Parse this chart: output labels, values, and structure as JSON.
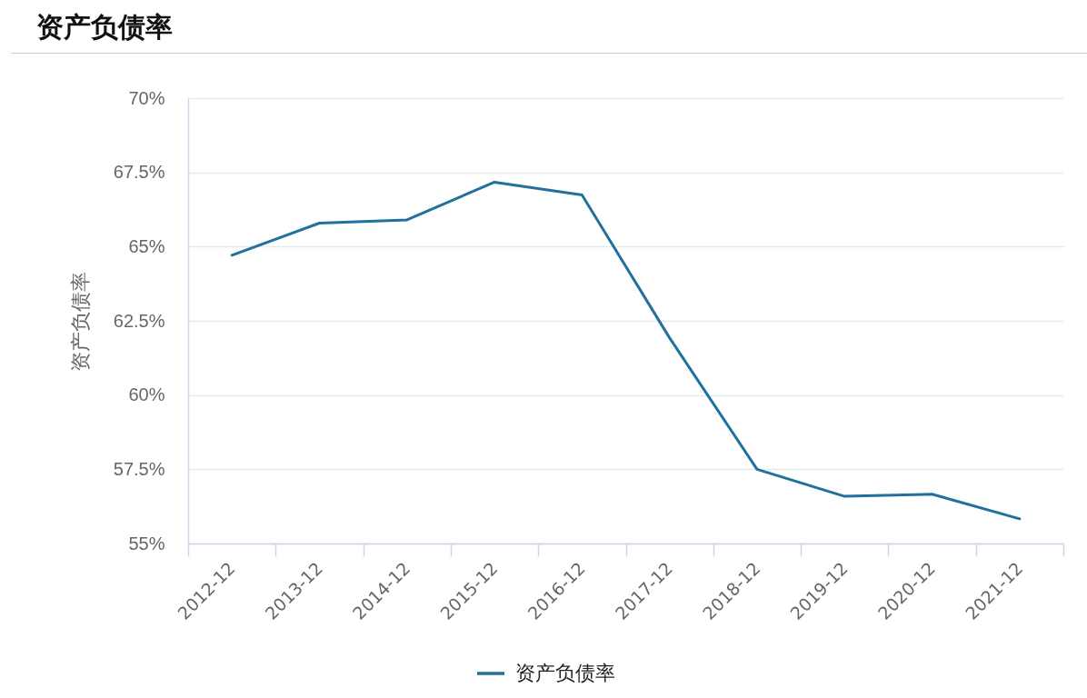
{
  "chart_data": {
    "type": "line",
    "title": "资产负债率",
    "ylabel": "资产负债率",
    "categories": [
      "2012-12",
      "2013-12",
      "2014-12",
      "2015-12",
      "2016-12",
      "2017-12",
      "2018-12",
      "2019-12",
      "2020-12",
      "2021-12"
    ],
    "series": [
      {
        "name": "资产负债率",
        "color": "#22709d",
        "values": [
          64.71,
          65.79,
          65.9,
          67.17,
          66.74,
          61.93,
          57.5,
          56.59,
          56.66,
          55.83
        ]
      }
    ],
    "ylim": [
      55,
      70
    ],
    "yticks": [
      {
        "value": 55,
        "label": "55%"
      },
      {
        "value": 57.5,
        "label": "57.5%"
      },
      {
        "value": 60,
        "label": "60%"
      },
      {
        "value": 62.5,
        "label": "62.5%"
      },
      {
        "value": 65,
        "label": "65%"
      },
      {
        "value": 67.5,
        "label": "67.5%"
      },
      {
        "value": 70,
        "label": "70%"
      }
    ],
    "grid": "y",
    "legend": "bottom"
  }
}
